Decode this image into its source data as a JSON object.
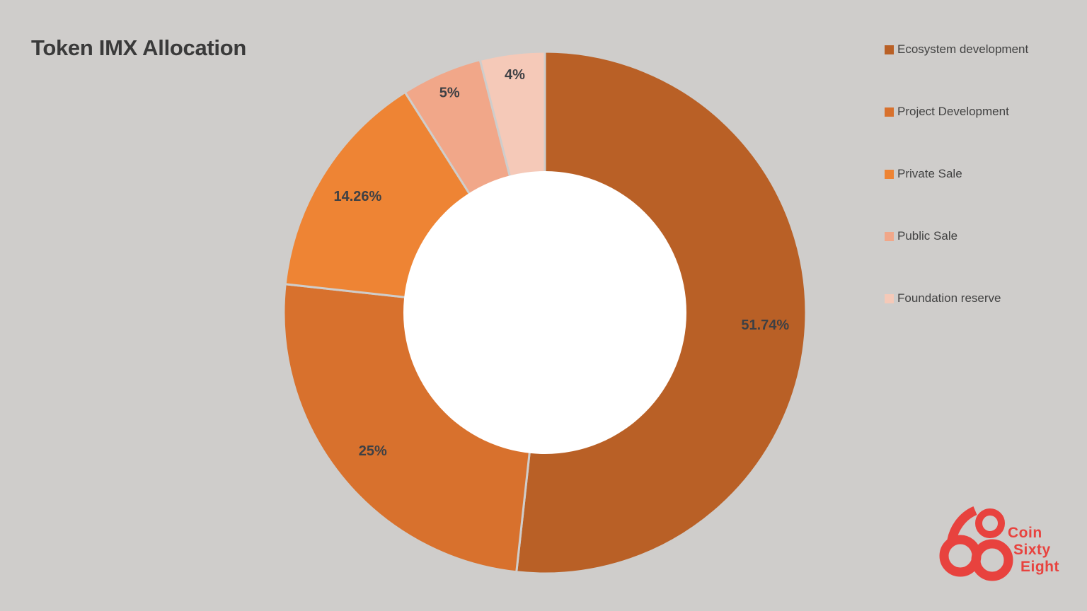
{
  "background": "#cfcdcb",
  "header": {
    "title": "Token IMX Allocation"
  },
  "chart_data": {
    "type": "pie",
    "subtype": "donut",
    "title": "Token IMX Allocation",
    "start_angle_deg": 0,
    "direction": "clockwise",
    "categories": [
      "Ecosystem development",
      "Project Development",
      "Private Sale",
      "Public Sale",
      "Foundation reserve"
    ],
    "values": [
      51.74,
      25,
      14.26,
      5,
      4
    ],
    "data_labels": [
      "51.74%",
      "25%",
      "14.26%",
      "5%",
      "4%"
    ],
    "colors": [
      "#b96026",
      "#d8712d",
      "#ee8434",
      "#f1a789",
      "#f5c9b8"
    ],
    "hole_color": "#ffffff",
    "separator_color": "#cfcdcb",
    "data_label_color": "#3e4044",
    "legend_position": "right",
    "legend_entries": [
      "Ecosystem development",
      "Project Development",
      "Private Sale",
      "Public Sale",
      "Foundation reserve"
    ]
  },
  "legend": {
    "items": [
      {
        "label": "Ecosystem development",
        "color": "#b96026"
      },
      {
        "label": "Project Development",
        "color": "#d8712d"
      },
      {
        "label": "Private Sale",
        "color": "#ee8434"
      },
      {
        "label": "Public Sale",
        "color": "#f1a789"
      },
      {
        "label": "Foundation reserve",
        "color": "#f5c9b8"
      }
    ]
  },
  "logo": {
    "numeral": "68",
    "lines": [
      "Coin",
      "Sixty",
      "Eight"
    ],
    "color": "#e8423e"
  }
}
